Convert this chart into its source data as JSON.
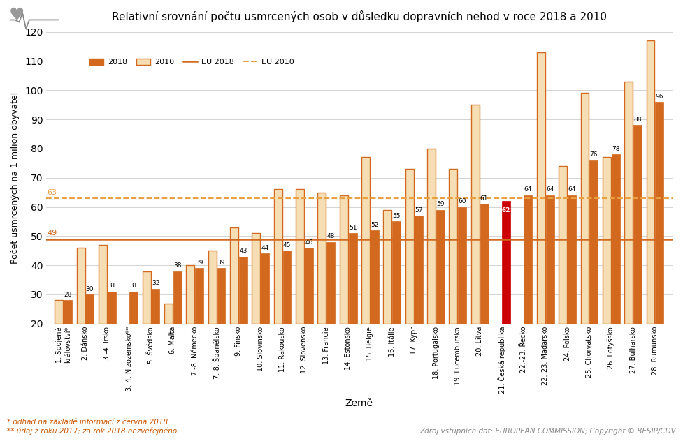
{
  "title": "Relativní srovnání počtu usmrcených osob v důsledku dopravních nehod v roce 2018 a 2010",
  "xlabel": "Země",
  "ylabel": "Počet usmrcených na 1 milion obyvatel",
  "ylim": [
    20,
    120
  ],
  "yticks": [
    20,
    30,
    40,
    50,
    60,
    70,
    80,
    90,
    100,
    110,
    120
  ],
  "eu_2018": 49,
  "eu_2010": 63,
  "categories": [
    "1. Spojené\nkrálovství*",
    "2. Dánsko",
    "3.-4. Irsko",
    "3.-4. Nizozemsko**",
    "5. Švédsko",
    "6. Malta",
    "7.-8. Německo",
    "7.-8. Španělsko",
    "9. Finsko",
    "10. Slovinsko",
    "11. Rakousko",
    "12. Slovensko",
    "13. Francie",
    "14. Estonsko",
    "15. Belgie",
    "16. Itálie",
    "17. Kypr",
    "18. Portugalsko",
    "19. Lucembursko",
    "20. Litva",
    "21. Česká republika",
    "22.-23. Řecko",
    "22.-23. Maďarsko",
    "24. Polsko",
    "25. Chorvatsko",
    "26. Lotyšsko",
    "27. Bulharsko",
    "28. Rumunsko"
  ],
  "values_2018": [
    28,
    30,
    31,
    31,
    32,
    38,
    39,
    39,
    43,
    44,
    45,
    46,
    48,
    51,
    52,
    55,
    57,
    59,
    60,
    61,
    62,
    64,
    64,
    64,
    76,
    78,
    88,
    96
  ],
  "values_2010": [
    28,
    46,
    47,
    null,
    38,
    27,
    40,
    45,
    53,
    51,
    66,
    66,
    65,
    64,
    77,
    59,
    73,
    80,
    73,
    95,
    null,
    null,
    113,
    74,
    99,
    77,
    103,
    117
  ],
  "highlight_index": 20,
  "bar_color_2018": "#D2691E",
  "bar_color_2010_face": "#F5DEB3",
  "bar_color_2010_edge": "#D2691E",
  "bar_color_highlight": "#CC0000",
  "eu_2018_color": "#D2691E",
  "eu_2010_color": "#E8A040",
  "footnote1": "* odhad na základě informací z června 2018",
  "footnote2": "** údaj z roku 2017; za rok 2018 nezveřejněno",
  "source": "Zdroj vstupních dat: EUROPEAN COMMISSION; Copyright © BESIP/CDV",
  "background_color": "#FFFFFF"
}
